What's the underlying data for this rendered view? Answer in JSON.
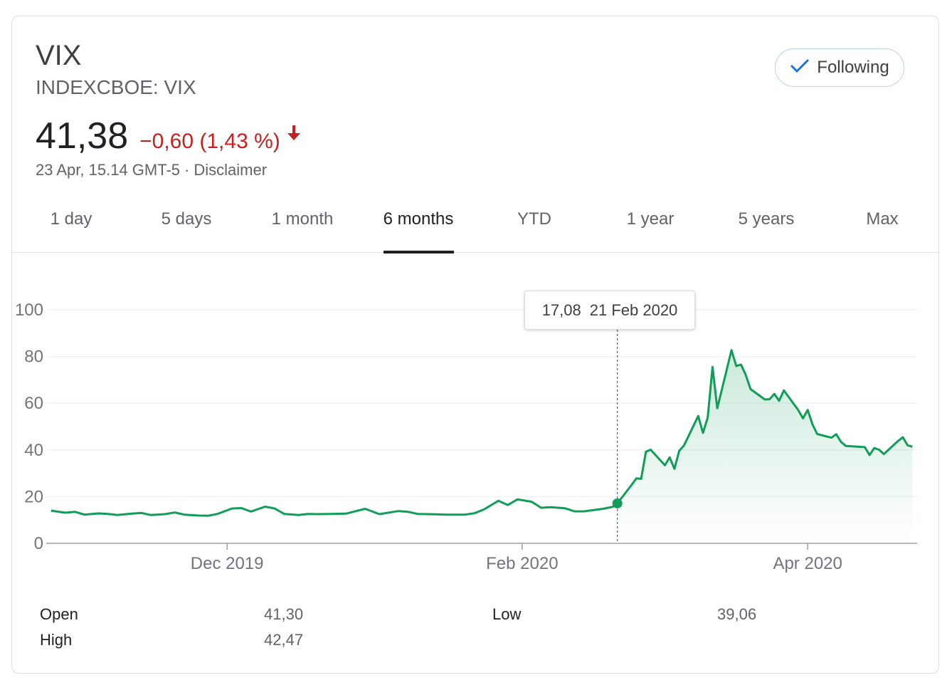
{
  "header": {
    "title": "VIX",
    "ticker": "INDEXCBOE: VIX",
    "follow_label": "Following",
    "price": "41,38",
    "change": "−0,60 (1,43 %)",
    "timestamp": "23 Apr, 15.14 GMT-5",
    "separator": "·",
    "disclaimer": "Disclaimer",
    "accent_color": "#1a73e8",
    "negative_color": "#c5221f",
    "positive_line_color": "#0f9d58"
  },
  "tabs": [
    {
      "label": "1 day"
    },
    {
      "label": "5 days"
    },
    {
      "label": "1 month"
    },
    {
      "label": "6 months",
      "active": true
    },
    {
      "label": "YTD"
    },
    {
      "label": "1 year"
    },
    {
      "label": "5 years"
    },
    {
      "label": "Max"
    }
  ],
  "tooltip": {
    "value": "17,08",
    "date": "21 Feb 2020"
  },
  "stats": [
    {
      "label": "Open",
      "value": "41,30"
    },
    {
      "label": "High",
      "value": "42,47"
    },
    {
      "label": "Low",
      "value": "39,06"
    }
  ],
  "chart_data": {
    "type": "area",
    "title": "",
    "xlabel": "",
    "ylabel": "",
    "ylim": [
      0,
      100
    ],
    "y_ticks": [
      0,
      20,
      40,
      60,
      80,
      100
    ],
    "x_ticks": [
      {
        "label": "Dec 2019",
        "date": "2019-12-01"
      },
      {
        "label": "Feb 2020",
        "date": "2020-02-01"
      },
      {
        "label": "Apr 2020",
        "date": "2020-04-01"
      }
    ],
    "x_range": [
      "2019-10-24",
      "2020-04-24"
    ],
    "grid": true,
    "series": [
      {
        "color": "#0f9d58",
        "points": [
          [
            "2019-10-25",
            14.0
          ],
          [
            "2019-10-28",
            13.1
          ],
          [
            "2019-10-30",
            13.5
          ],
          [
            "2019-11-01",
            12.3
          ],
          [
            "2019-11-04",
            12.8
          ],
          [
            "2019-11-06",
            12.6
          ],
          [
            "2019-11-08",
            12.1
          ],
          [
            "2019-11-11",
            12.7
          ],
          [
            "2019-11-13",
            13.0
          ],
          [
            "2019-11-15",
            12.1
          ],
          [
            "2019-11-18",
            12.5
          ],
          [
            "2019-11-20",
            13.2
          ],
          [
            "2019-11-22",
            12.3
          ],
          [
            "2019-11-25",
            11.9
          ],
          [
            "2019-11-27",
            11.8
          ],
          [
            "2019-11-29",
            12.6
          ],
          [
            "2019-12-02",
            14.9
          ],
          [
            "2019-12-04",
            15.1
          ],
          [
            "2019-12-06",
            13.6
          ],
          [
            "2019-12-09",
            15.7
          ],
          [
            "2019-12-11",
            14.9
          ],
          [
            "2019-12-13",
            12.6
          ],
          [
            "2019-12-16",
            12.1
          ],
          [
            "2019-12-18",
            12.6
          ],
          [
            "2019-12-20",
            12.5
          ],
          [
            "2019-12-23",
            12.6
          ],
          [
            "2019-12-26",
            12.7
          ],
          [
            "2019-12-30",
            14.8
          ],
          [
            "2020-01-02",
            12.5
          ],
          [
            "2020-01-06",
            13.8
          ],
          [
            "2020-01-08",
            13.5
          ],
          [
            "2020-01-10",
            12.6
          ],
          [
            "2020-01-14",
            12.4
          ],
          [
            "2020-01-16",
            12.3
          ],
          [
            "2020-01-20",
            12.3
          ],
          [
            "2020-01-22",
            12.9
          ],
          [
            "2020-01-24",
            14.5
          ],
          [
            "2020-01-27",
            18.2
          ],
          [
            "2020-01-29",
            16.4
          ],
          [
            "2020-01-31",
            18.8
          ],
          [
            "2020-02-03",
            17.8
          ],
          [
            "2020-02-05",
            15.2
          ],
          [
            "2020-02-07",
            15.5
          ],
          [
            "2020-02-10",
            15.0
          ],
          [
            "2020-02-12",
            13.7
          ],
          [
            "2020-02-14",
            13.7
          ],
          [
            "2020-02-18",
            14.8
          ],
          [
            "2020-02-20",
            15.6
          ],
          [
            "2020-02-21",
            17.08
          ],
          [
            "2020-02-24",
            25.0
          ],
          [
            "2020-02-25",
            27.8
          ],
          [
            "2020-02-26",
            27.6
          ],
          [
            "2020-02-27",
            39.2
          ],
          [
            "2020-02-28",
            40.1
          ],
          [
            "2020-03-02",
            33.4
          ],
          [
            "2020-03-03",
            36.8
          ],
          [
            "2020-03-04",
            31.9
          ],
          [
            "2020-03-05",
            39.6
          ],
          [
            "2020-03-06",
            41.9
          ],
          [
            "2020-03-09",
            54.5
          ],
          [
            "2020-03-10",
            47.3
          ],
          [
            "2020-03-11",
            53.9
          ],
          [
            "2020-03-12",
            75.5
          ],
          [
            "2020-03-13",
            57.8
          ],
          [
            "2020-03-16",
            82.7
          ],
          [
            "2020-03-17",
            75.9
          ],
          [
            "2020-03-18",
            76.5
          ],
          [
            "2020-03-19",
            72.0
          ],
          [
            "2020-03-20",
            66.0
          ],
          [
            "2020-03-23",
            61.6
          ],
          [
            "2020-03-24",
            61.7
          ],
          [
            "2020-03-25",
            64.0
          ],
          [
            "2020-03-26",
            61.0
          ],
          [
            "2020-03-27",
            65.5
          ],
          [
            "2020-03-30",
            57.1
          ],
          [
            "2020-03-31",
            53.5
          ],
          [
            "2020-04-01",
            57.1
          ],
          [
            "2020-04-02",
            50.9
          ],
          [
            "2020-04-03",
            46.8
          ],
          [
            "2020-04-06",
            45.2
          ],
          [
            "2020-04-07",
            46.7
          ],
          [
            "2020-04-08",
            43.4
          ],
          [
            "2020-04-09",
            41.7
          ],
          [
            "2020-04-13",
            41.2
          ],
          [
            "2020-04-14",
            37.8
          ],
          [
            "2020-04-15",
            40.8
          ],
          [
            "2020-04-16",
            40.1
          ],
          [
            "2020-04-17",
            38.2
          ],
          [
            "2020-04-20",
            43.8
          ],
          [
            "2020-04-21",
            45.4
          ],
          [
            "2020-04-22",
            41.98
          ],
          [
            "2020-04-23",
            41.38
          ]
        ]
      }
    ],
    "highlight_point": {
      "date": "2020-02-21",
      "value": 17.08
    }
  }
}
